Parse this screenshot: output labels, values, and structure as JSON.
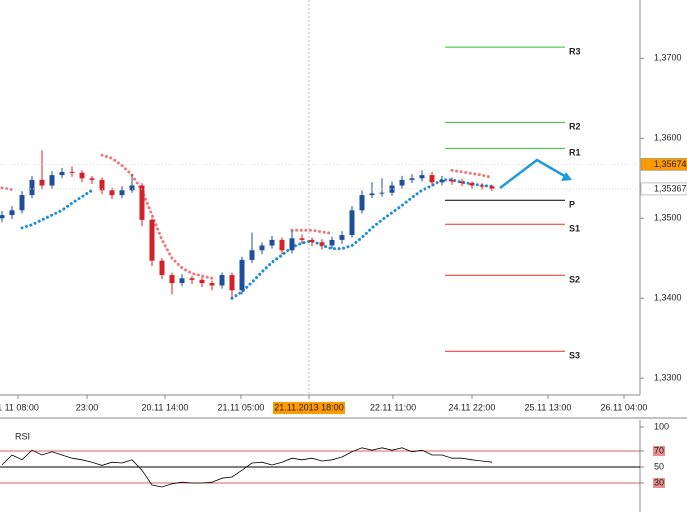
{
  "chart_data": [
    {
      "type": "candlestick",
      "up_color": "#1f4e9c",
      "down_color": "#d62027",
      "open": [
        1.35,
        1.3504,
        1.351,
        1.3529,
        1.3548,
        1.3541,
        1.3554,
        1.3558,
        1.3557,
        1.355,
        1.3548,
        1.3535,
        1.3529,
        1.3535,
        1.3541,
        1.3498,
        1.3447,
        1.3429,
        1.3419,
        1.3425,
        1.3423,
        1.3419,
        1.3416,
        1.3429,
        1.341,
        1.3448,
        1.346,
        1.3466,
        1.3473,
        1.346,
        1.3475,
        1.3473,
        1.347,
        1.3466,
        1.3473,
        1.3479,
        1.351,
        1.3529,
        1.3531,
        1.3532,
        1.3541,
        1.3548,
        1.355,
        1.3554,
        1.3545,
        1.3548,
        1.3546,
        1.3544,
        1.3541,
        1.354
      ],
      "close": [
        1.3504,
        1.351,
        1.3529,
        1.3548,
        1.3541,
        1.3554,
        1.3558,
        1.3557,
        1.355,
        1.3548,
        1.3535,
        1.3529,
        1.3535,
        1.3541,
        1.3498,
        1.3447,
        1.3429,
        1.3419,
        1.3425,
        1.3423,
        1.3419,
        1.3416,
        1.3429,
        1.341,
        1.3448,
        1.346,
        1.3466,
        1.3473,
        1.346,
        1.3475,
        1.3473,
        1.347,
        1.3466,
        1.3473,
        1.3479,
        1.351,
        1.3529,
        1.3531,
        1.3532,
        1.3541,
        1.3548,
        1.355,
        1.3554,
        1.3545,
        1.3548,
        1.3546,
        1.3544,
        1.3541,
        1.354,
        1.3537
      ],
      "high": [
        1.3509,
        1.3515,
        1.3534,
        1.3553,
        1.3585,
        1.3559,
        1.3563,
        1.3565,
        1.356,
        1.3553,
        1.3551,
        1.3538,
        1.354,
        1.3555,
        1.3544,
        1.35,
        1.345,
        1.3432,
        1.343,
        1.3428,
        1.3426,
        1.3422,
        1.3432,
        1.3432,
        1.3452,
        1.3482,
        1.347,
        1.3478,
        1.3476,
        1.3485,
        1.348,
        1.3476,
        1.3474,
        1.3477,
        1.3484,
        1.3515,
        1.3535,
        1.3545,
        1.355,
        1.3546,
        1.3553,
        1.3555,
        1.356,
        1.3558,
        1.3553,
        1.3551,
        1.3549,
        1.3546,
        1.3544,
        1.3542
      ],
      "low": [
        1.3495,
        1.3499,
        1.3506,
        1.3525,
        1.3536,
        1.3537,
        1.355,
        1.3552,
        1.3545,
        1.3543,
        1.353,
        1.3524,
        1.3525,
        1.3532,
        1.349,
        1.344,
        1.3424,
        1.3405,
        1.3415,
        1.3418,
        1.3414,
        1.341,
        1.3412,
        1.34,
        1.3405,
        1.3444,
        1.3455,
        1.3462,
        1.3455,
        1.3456,
        1.3468,
        1.3465,
        1.3461,
        1.3462,
        1.3468,
        1.3476,
        1.3506,
        1.3525,
        1.3527,
        1.3528,
        1.3537,
        1.3544,
        1.3546,
        1.354,
        1.3541,
        1.3542,
        1.354,
        1.3537,
        1.3536,
        1.3534
      ],
      "line_series": [
        {
          "color": "#f07878",
          "values": [
            1.3538,
            1.3536,
            null,
            null,
            null,
            null,
            null,
            null,
            null,
            null,
            1.3579,
            1.3575,
            1.3566,
            1.3554,
            1.3535,
            1.3504,
            1.3473,
            1.345,
            1.3438,
            1.3431,
            1.3428,
            1.3425,
            null,
            null,
            null,
            null,
            null,
            null,
            null,
            1.3485,
            1.3485,
            1.3485,
            1.3483,
            1.3481,
            null,
            null,
            null,
            null,
            null,
            null,
            null,
            null,
            null,
            null,
            null,
            1.356,
            1.3558,
            1.3556,
            1.3554,
            1.3551
          ]
        },
        {
          "color": "#1e8fd6",
          "values": [
            null,
            null,
            1.3488,
            1.3492,
            1.3498,
            1.3504,
            1.351,
            1.3519,
            1.3527,
            1.3535,
            null,
            null,
            null,
            null,
            null,
            null,
            null,
            null,
            null,
            null,
            null,
            null,
            null,
            1.34,
            1.3408,
            1.342,
            1.3433,
            1.3445,
            1.3454,
            1.3464,
            1.3469,
            1.3472,
            1.3466,
            1.3462,
            1.3462,
            1.3466,
            1.3476,
            1.3488,
            1.3498,
            1.3507,
            1.3516,
            1.3526,
            1.3535,
            1.3541,
            1.3548,
            1.3548,
            1.3545,
            1.3543,
            1.3541,
            1.354
          ]
        }
      ],
      "levels": [
        {
          "label": "R3",
          "value": 1.3714,
          "color": "#33c033"
        },
        {
          "label": "R2",
          "value": 1.362,
          "color": "#33c033"
        },
        {
          "label": "R1",
          "value": 1.35875,
          "color": "#33c033"
        },
        {
          "label": "P",
          "value": 1.35225,
          "color": "#000000"
        },
        {
          "label": "S1",
          "value": 1.34925,
          "color": "#e03030"
        },
        {
          "label": "S2",
          "value": 1.342875,
          "color": "#e03030"
        },
        {
          "label": "S3",
          "value": 1.333375,
          "color": "#e03030"
        }
      ],
      "price_labels": [
        {
          "value": 1.35674,
          "label": "1,35674",
          "color": "#ff9900"
        },
        {
          "value": 1.35367,
          "label": "1,35367",
          "color": "#ffffff"
        }
      ],
      "ylim": [
        1.3279,
        1.3773
      ],
      "yticks": [
        {
          "value": 1.33,
          "label": "1,3300"
        },
        {
          "value": 1.34,
          "label": "1,3400"
        },
        {
          "value": 1.35,
          "label": "1,3500"
        },
        {
          "value": 1.36,
          "label": "1,3600"
        },
        {
          "value": 1.37,
          "label": "1,3700"
        }
      ],
      "xlim": [
        -0.2,
        63.8
      ],
      "xticks": [
        {
          "value": 1.6,
          "label": "1 11 08:00"
        },
        {
          "value": 8.5,
          "label": "23:00"
        },
        {
          "value": 16.3,
          "label": "20.11 14:00"
        },
        {
          "value": 23.9,
          "label": "21.11 05:00"
        },
        {
          "value": 30.7,
          "label": "21.11.2013 18:00"
        },
        {
          "value": 39.1,
          "label": "22.11 11:00"
        },
        {
          "value": 47,
          "label": "24.11 22:00"
        },
        {
          "value": 54.6,
          "label": "25.11 13:00"
        },
        {
          "value": 62.2,
          "label": "26.11 04:00"
        }
      ],
      "highlighted_xtick": 4
    },
    {
      "type": "line",
      "title": "RSI",
      "color": "#000000",
      "values": [
        52.5,
        65,
        59,
        71,
        65,
        69,
        65,
        61,
        59,
        56,
        52,
        56,
        55,
        59,
        46,
        27.5,
        25,
        29,
        31,
        30,
        30,
        31,
        36,
        37.5,
        46,
        55,
        56,
        52.5,
        56,
        61,
        59,
        61,
        57.5,
        59,
        62.5,
        69,
        74,
        71,
        74,
        71,
        74,
        69,
        71,
        65,
        65,
        61,
        61,
        59,
        57.5,
        56
      ],
      "levels": [
        {
          "value": 70,
          "color": "#e06060"
        },
        {
          "value": 50,
          "color": "#000000"
        },
        {
          "value": 30,
          "color": "#e06060"
        }
      ],
      "ylim": [
        0,
        100
      ],
      "yticks": [
        100,
        70,
        50,
        30
      ]
    }
  ]
}
